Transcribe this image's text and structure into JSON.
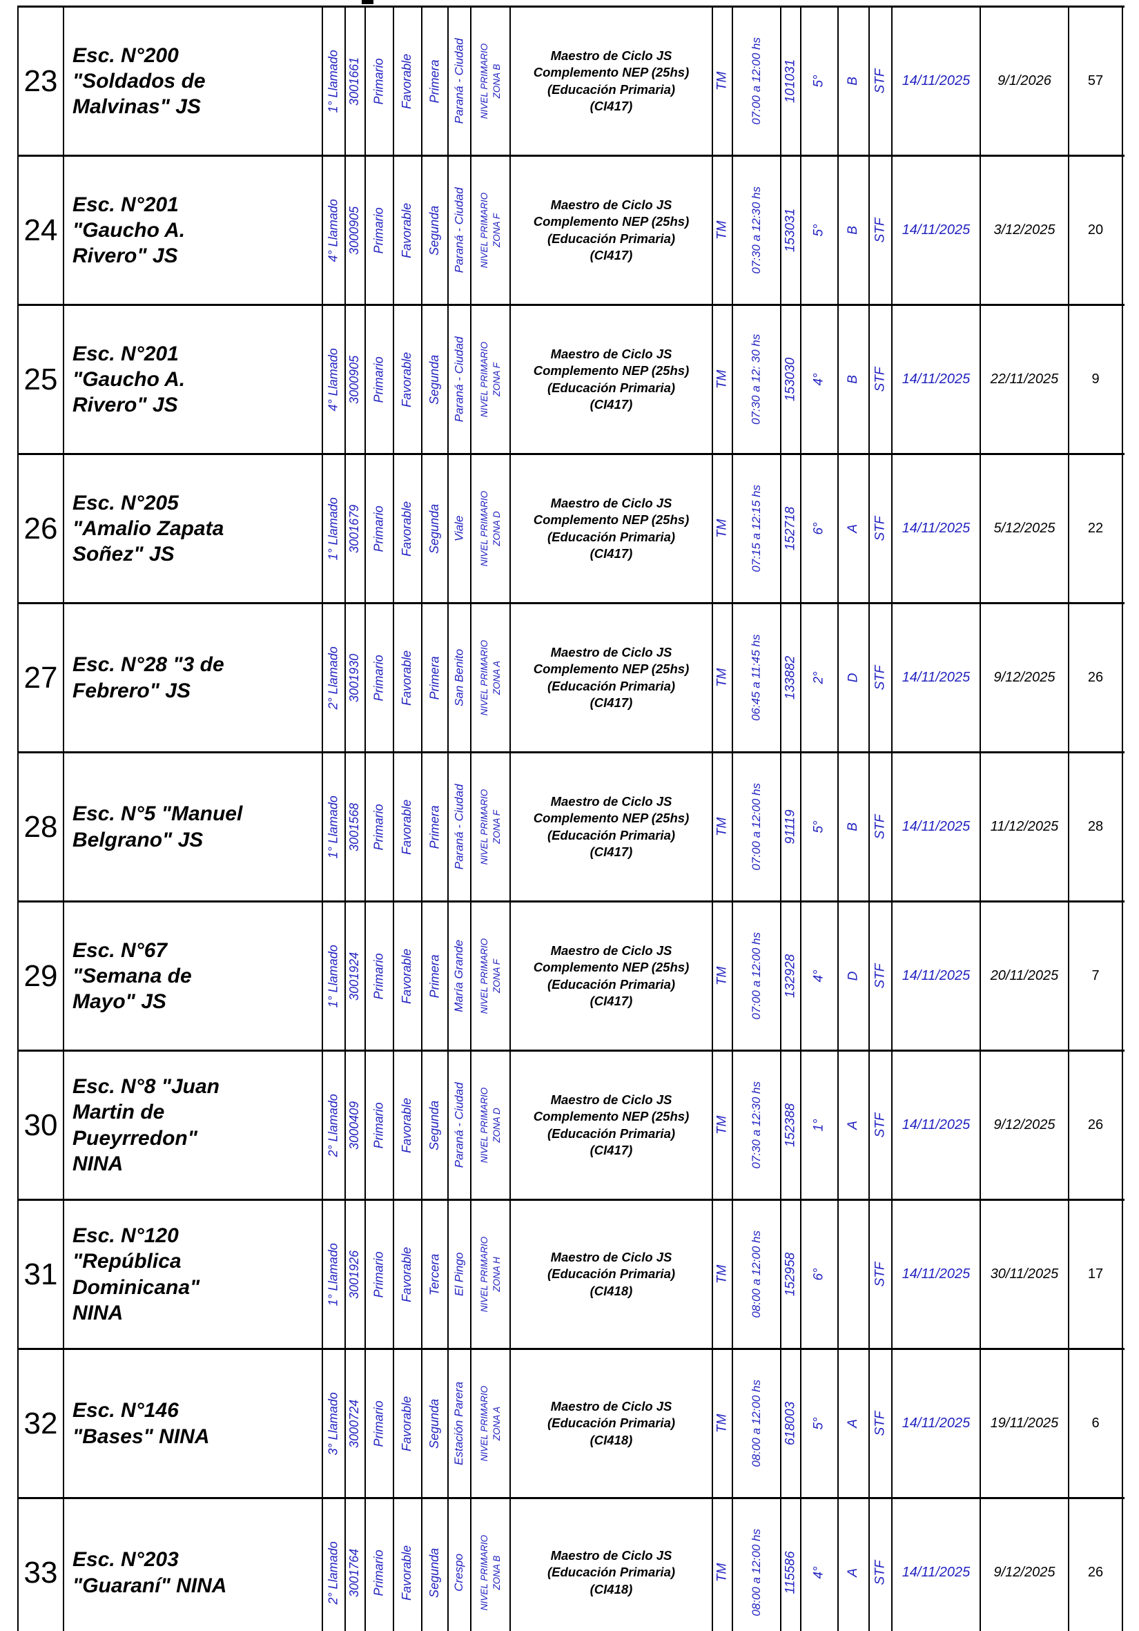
{
  "colors": {
    "accent_blue": "#2222c0",
    "text_black": "#000000",
    "border_black": "#000000",
    "page_background": "#ffffff"
  },
  "table": {
    "rows": [
      {
        "num": "23",
        "school": "Esc. N°200\n\"Soldados de\nMalvinas\" JS",
        "llamado": "1° Llamado",
        "codigo": "3001661",
        "nivel": "Primario",
        "concepto": "Favorable",
        "categoria": "Primera",
        "localidad": "Paraná - Ciudad",
        "zona": "NIVEL PRIMARIO\nZONA B",
        "cargo": "Maestro de Ciclo JS\nComplemento NEP (25hs)\n(Educación Primaria)\n(CI417)",
        "turno": "TM",
        "horario": "07:00 a 12:00 hs",
        "pof": "101031",
        "grado": "5°",
        "seccion": "B",
        "caracter": "STF",
        "desde": "14/11/2025",
        "hasta": "9/1/2026",
        "dias": "57"
      },
      {
        "num": "24",
        "school": "Esc. N°201\n\"Gaucho A.\nRivero\" JS",
        "llamado": "4° Llamado",
        "codigo": "3000905",
        "nivel": "Primario",
        "concepto": "Favorable",
        "categoria": "Segunda",
        "localidad": "Paraná - Ciudad",
        "zona": "NIVEL PRIMARIO\nZONA F",
        "cargo": "Maestro de Ciclo JS\nComplemento NEP (25hs)\n(Educación Primaria)\n(CI417)",
        "turno": "TM",
        "horario": "07:30 a 12:30 hs",
        "pof": "153031",
        "grado": "5°",
        "seccion": "B",
        "caracter": "STF",
        "desde": "14/11/2025",
        "hasta": "3/12/2025",
        "dias": "20"
      },
      {
        "num": "25",
        "school": "Esc. N°201\n\"Gaucho A.\nRivero\" JS",
        "llamado": "4° Llamado",
        "codigo": "3000905",
        "nivel": "Primario",
        "concepto": "Favorable",
        "categoria": "Segunda",
        "localidad": "Paraná - Ciudad",
        "zona": "NIVEL PRIMARIO\nZONA F",
        "cargo": "Maestro de Ciclo JS\nComplemento NEP (25hs)\n(Educación Primaria)\n(CI417)",
        "turno": "TM",
        "horario": "07:30 a 12: 30 hs",
        "pof": "153030",
        "grado": "4°",
        "seccion": "B",
        "caracter": "STF",
        "desde": "14/11/2025",
        "hasta": "22/11/2025",
        "dias": "9"
      },
      {
        "num": "26",
        "school": "Esc. N°205\n\"Amalio Zapata\nSoñez\" JS",
        "llamado": "1° Llamado",
        "codigo": "3001679",
        "nivel": "Primario",
        "concepto": "Favorable",
        "categoria": "Segunda",
        "localidad": "Viale",
        "zona": "NIVEL PRIMARIO\nZONA D",
        "cargo": "Maestro de Ciclo JS\nComplemento NEP (25hs)\n(Educación Primaria)\n(CI417)",
        "turno": "TM",
        "horario": "07:15 a 12:15 hs",
        "pof": "152718",
        "grado": "6°",
        "seccion": "A",
        "caracter": "STF",
        "desde": "14/11/2025",
        "hasta": "5/12/2025",
        "dias": "22"
      },
      {
        "num": "27",
        "school": "Esc. N°28 \"3 de\nFebrero\" JS",
        "llamado": "2° Llamado",
        "codigo": "3001930",
        "nivel": "Primario",
        "concepto": "Favorable",
        "categoria": "Primera",
        "localidad": "San Benito",
        "zona": "NIVEL PRIMARIO\nZONA A",
        "cargo": "Maestro de Ciclo JS\nComplemento NEP (25hs)\n(Educación Primaria)\n(CI417)",
        "turno": "TM",
        "horario": "06:45 a 11:45 hs",
        "pof": "133882",
        "grado": "2°",
        "seccion": "D",
        "caracter": "STF",
        "desde": "14/11/2025",
        "hasta": "9/12/2025",
        "dias": "26"
      },
      {
        "num": "28",
        "school": "Esc. N°5 \"Manuel\nBelgrano\" JS",
        "llamado": "1° Llamado",
        "codigo": "3001568",
        "nivel": "Primario",
        "concepto": "Favorable",
        "categoria": "Primera",
        "localidad": "Paraná - Ciudad",
        "zona": "NIVEL PRIMARIO\nZONA F",
        "cargo": "Maestro de Ciclo JS\nComplemento NEP (25hs)\n(Educación Primaria)\n(CI417)",
        "turno": "TM",
        "horario": "07:00 a 12:00 hs",
        "pof": "91119",
        "grado": "5°",
        "seccion": "B",
        "caracter": "STF",
        "desde": "14/11/2025",
        "hasta": "11/12/2025",
        "dias": "28"
      },
      {
        "num": "29",
        "school": "Esc. N°67\n\"Semana de\nMayo\" JS",
        "llamado": "1° Llamado",
        "codigo": "3001924",
        "nivel": "Primario",
        "concepto": "Favorable",
        "categoria": "Primera",
        "localidad": "María Grande",
        "zona": "NIVEL PRIMARIO\nZONA F",
        "cargo": "Maestro de Ciclo JS\nComplemento NEP (25hs)\n(Educación Primaria)\n(CI417)",
        "turno": "TM",
        "horario": "07:00 a 12:00 hs",
        "pof": "132928",
        "grado": "4°",
        "seccion": "D",
        "caracter": "STF",
        "desde": "14/11/2025",
        "hasta": "20/11/2025",
        "dias": "7"
      },
      {
        "num": "30",
        "school": "Esc. N°8 \"Juan\nMartin de\nPueyrredon\"\nNINA",
        "llamado": "2° Llamado",
        "codigo": "3000409",
        "nivel": "Primario",
        "concepto": "Favorable",
        "categoria": "Segunda",
        "localidad": "Paraná - Ciudad",
        "zona": "NIVEL PRIMARIO\nZONA D",
        "cargo": "Maestro de Ciclo JS\nComplemento NEP (25hs)\n(Educación Primaria)\n(CI417)",
        "turno": "TM",
        "horario": "07:30 a 12:30 hs",
        "pof": "152388",
        "grado": "1°",
        "seccion": "A",
        "caracter": "STF",
        "desde": "14/11/2025",
        "hasta": "9/12/2025",
        "dias": "26"
      },
      {
        "num": "31",
        "school": "Esc. N°120\n\"República\nDominicana\"\nNINA",
        "llamado": "1° Llamado",
        "codigo": "3001926",
        "nivel": "Primario",
        "concepto": "Favorable",
        "categoria": "Tercera",
        "localidad": "El Pingo",
        "zona": "NIVEL PRIMARIO\nZONA H",
        "cargo": "Maestro de Ciclo JS\n(Educación Primaria)\n(CI418)",
        "turno": "TM",
        "horario": "08:00 a 12:00 hs",
        "pof": "152958",
        "grado": "6°",
        "seccion": "",
        "caracter": "STF",
        "desde": "14/11/2025",
        "hasta": "30/11/2025",
        "dias": "17"
      },
      {
        "num": "32",
        "school": "Esc. N°146\n\"Bases\" NINA",
        "llamado": "3° Llamado",
        "codigo": "3000724",
        "nivel": "Primario",
        "concepto": "Favorable",
        "categoria": "Segunda",
        "localidad": "Estación Parera",
        "zona": "NIVEL PRIMARIO\nZONA A",
        "cargo": "Maestro de Ciclo JS\n(Educación Primaria)\n(CI418)",
        "turno": "TM",
        "horario": "08:00 a 12:00 hs",
        "pof": "618003",
        "grado": "5°",
        "seccion": "A",
        "caracter": "STF",
        "desde": "14/11/2025",
        "hasta": "19/11/2025",
        "dias": "6"
      },
      {
        "num": "33",
        "school": "Esc. N°203\n\"Guaraní\" NINA",
        "llamado": "2° Llamado",
        "codigo": "3001764",
        "nivel": "Primario",
        "concepto": "Favorable",
        "categoria": "Segunda",
        "localidad": "Crespo",
        "zona": "NIVEL PRIMARIO\nZONA B",
        "cargo": "Maestro de Ciclo JS\n(Educación Primaria)\n(CI418)",
        "turno": "TM",
        "horario": "08:00 a 12:00 hs",
        "pof": "115586",
        "grado": "4°",
        "seccion": "A",
        "caracter": "STF",
        "desde": "14/11/2025",
        "hasta": "9/12/2025",
        "dias": "26"
      }
    ]
  }
}
